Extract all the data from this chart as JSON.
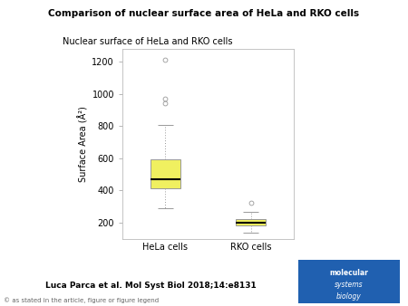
{
  "title": "Comparison of nuclear surface area of HeLa and RKO cells",
  "plot_title": "Nuclear surface of HeLa and RKO cells",
  "ylabel": "Surface Area (Å²)",
  "categories": [
    "HeLa cells",
    "RKO cells"
  ],
  "hela_stats": {
    "median": 470,
    "q1": 415,
    "q3": 595,
    "whisker_low": 290,
    "whisker_high": 810,
    "outliers": [
      970,
      945,
      1215
    ]
  },
  "rko_stats": {
    "median": 200,
    "q1": 185,
    "q3": 220,
    "whisker_low": 140,
    "whisker_high": 265,
    "outliers": [
      325
    ]
  },
  "ylim": [
    100,
    1280
  ],
  "yticks": [
    200,
    400,
    600,
    800,
    1000,
    1200
  ],
  "box_color": "#f0f060",
  "box_edgecolor": "#999999",
  "median_color": "#000000",
  "whisker_color": "#999999",
  "flier_color": "#999999",
  "citation": "Luca Parca et al. Mol Syst Biol 2018;14:e8131",
  "footnote": "© as stated in the article, figure or figure legend",
  "background_color": "#ffffff"
}
